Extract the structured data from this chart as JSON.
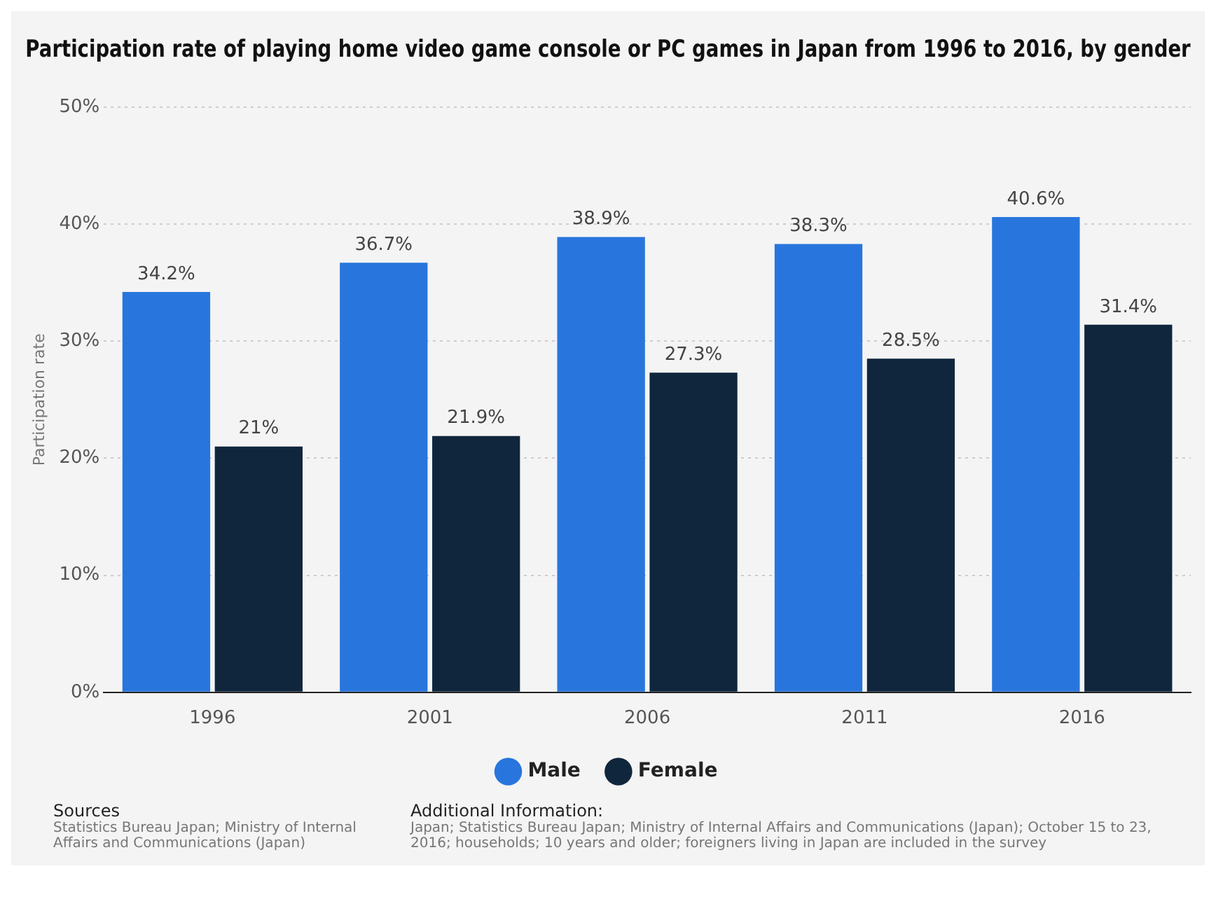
{
  "chart_data": {
    "type": "bar",
    "title": "Participation rate of playing home video game console or PC games in Japan from 1996 to 2016, by gender",
    "ylabel": "Participation rate",
    "categories": [
      "1996",
      "2001",
      "2006",
      "2011",
      "2016"
    ],
    "series": [
      {
        "name": "Male",
        "color": "#2876dd",
        "values": [
          34.2,
          36.7,
          38.9,
          38.3,
          40.6
        ],
        "value_labels": [
          "34.2%",
          "36.7%",
          "38.9%",
          "38.3%",
          "40.6%"
        ]
      },
      {
        "name": "Female",
        "color": "#10263c",
        "values": [
          21,
          21.9,
          27.3,
          28.5,
          31.4
        ],
        "value_labels": [
          "21%",
          "21.9%",
          "27.3%",
          "28.5%",
          "31.4%"
        ]
      }
    ],
    "ylim": [
      0,
      50
    ],
    "yticks": [
      {
        "value": 0,
        "label": "0%"
      },
      {
        "value": 10,
        "label": "10%"
      },
      {
        "value": 20,
        "label": "20%"
      },
      {
        "value": 30,
        "label": "30%"
      },
      {
        "value": 40,
        "label": "40%"
      },
      {
        "value": 50,
        "label": "50%"
      }
    ],
    "grid": "y",
    "legend": "bottom",
    "annotations": [
      "Sources",
      "Statistics Bureau Japan; Ministry of Internal Affairs and Communications (Japan)",
      "Additional Information:",
      "Japan; Statistics Bureau Japan; Ministry of Internal Affairs and Communications (Japan); October 15 to 23, 2016; households; 10 years and older; foreigners living in Japan are included in the survey"
    ]
  }
}
